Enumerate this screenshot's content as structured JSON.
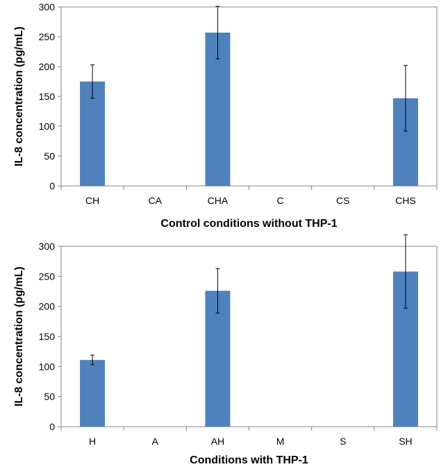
{
  "chart_data": [
    {
      "type": "bar",
      "categories": [
        "CH",
        "CA",
        "CHA",
        "C",
        "CS",
        "CHS"
      ],
      "values": [
        175,
        0,
        257,
        0,
        0,
        147
      ],
      "errors": [
        28,
        0,
        44,
        0,
        0,
        55
      ],
      "xlabel": "Control conditions without THP-1",
      "ylabel": "IL-8 concentration  (pg/mL)",
      "ylim": [
        0,
        300
      ],
      "yticks": [
        0,
        50,
        100,
        150,
        200,
        250,
        300
      ],
      "bar_color": "#4f81bd",
      "grid": false
    },
    {
      "type": "bar",
      "categories": [
        "H",
        "A",
        "AH",
        "M",
        "S",
        "SH"
      ],
      "values": [
        111,
        0,
        226,
        0,
        0,
        258
      ],
      "errors": [
        8,
        0,
        37,
        0,
        0,
        61
      ],
      "xlabel": "Conditions with THP-1",
      "ylabel": "IL-8 concentration  (pg/mL)",
      "ylim": [
        0,
        300
      ],
      "yticks": [
        0,
        50,
        100,
        150,
        200,
        250,
        300
      ],
      "bar_color": "#4f81bd",
      "grid": false
    }
  ]
}
